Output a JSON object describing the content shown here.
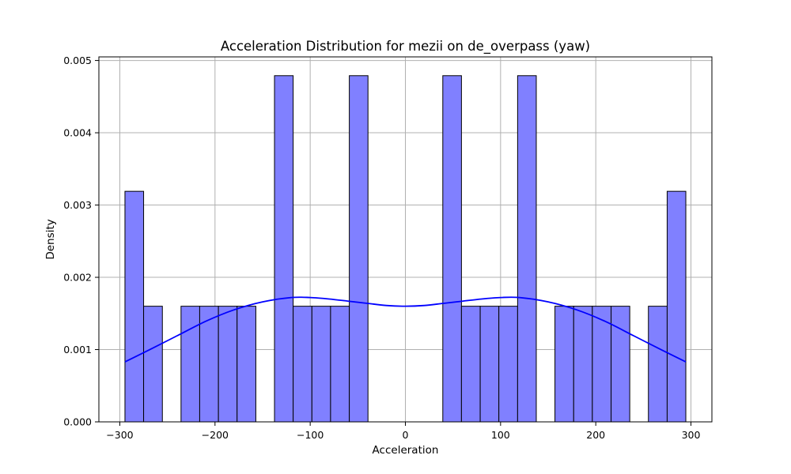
{
  "chart_data": {
    "type": "bar",
    "subtype": "histogram-with-kde",
    "title": "Acceleration Distribution for mezii on de_overpass (yaw)",
    "xlabel": "Acceleration",
    "ylabel": "Density",
    "xlim": [
      -322,
      322
    ],
    "ylim": [
      0,
      0.00505
    ],
    "grid": true,
    "bar_color": "#8080ff",
    "bar_edge_color": "#000000",
    "kde_color": "#0000ff",
    "xticks": [
      -300,
      -200,
      -100,
      0,
      100,
      200,
      300
    ],
    "xtick_labels": [
      "−300",
      "−200",
      "−100",
      "0",
      "100",
      "200",
      "300"
    ],
    "yticks": [
      0,
      0.001,
      0.002,
      0.003,
      0.004,
      0.005
    ],
    "ytick_labels": [
      "0.000",
      "0.001",
      "0.002",
      "0.003",
      "0.004",
      "0.005"
    ],
    "bins": [
      {
        "x0": -294.6,
        "x1": -275.0,
        "density": 0.00319
      },
      {
        "x0": -275.0,
        "x1": -255.3,
        "density": 0.0016
      },
      {
        "x0": -255.3,
        "x1": -235.7,
        "density": 0
      },
      {
        "x0": -235.7,
        "x1": -216.1,
        "density": 0.0016
      },
      {
        "x0": -216.1,
        "x1": -196.4,
        "density": 0.0016
      },
      {
        "x0": -196.4,
        "x1": -176.8,
        "density": 0.0016
      },
      {
        "x0": -176.8,
        "x1": -157.1,
        "density": 0.0016
      },
      {
        "x0": -157.1,
        "x1": -137.5,
        "density": 0
      },
      {
        "x0": -137.5,
        "x1": -117.9,
        "density": 0.00479
      },
      {
        "x0": -117.9,
        "x1": -98.2,
        "density": 0.0016
      },
      {
        "x0": -98.2,
        "x1": -78.6,
        "density": 0.0016
      },
      {
        "x0": -78.6,
        "x1": -58.9,
        "density": 0.0016
      },
      {
        "x0": -58.9,
        "x1": -39.3,
        "density": 0.00479
      },
      {
        "x0": -39.3,
        "x1": -19.6,
        "density": 0
      },
      {
        "x0": -19.6,
        "x1": 0.0,
        "density": 0
      },
      {
        "x0": 0.0,
        "x1": 19.6,
        "density": 0
      },
      {
        "x0": 19.6,
        "x1": 39.3,
        "density": 0
      },
      {
        "x0": 39.3,
        "x1": 58.9,
        "density": 0.00479
      },
      {
        "x0": 58.9,
        "x1": 78.6,
        "density": 0.0016
      },
      {
        "x0": 78.6,
        "x1": 98.2,
        "density": 0.0016
      },
      {
        "x0": 98.2,
        "x1": 117.9,
        "density": 0.0016
      },
      {
        "x0": 117.9,
        "x1": 137.5,
        "density": 0.00479
      },
      {
        "x0": 137.5,
        "x1": 157.1,
        "density": 0
      },
      {
        "x0": 157.1,
        "x1": 176.8,
        "density": 0.0016
      },
      {
        "x0": 176.8,
        "x1": 196.4,
        "density": 0.0016
      },
      {
        "x0": 196.4,
        "x1": 216.1,
        "density": 0.0016
      },
      {
        "x0": 216.1,
        "x1": 235.7,
        "density": 0.0016
      },
      {
        "x0": 235.7,
        "x1": 255.3,
        "density": 0
      },
      {
        "x0": 255.3,
        "x1": 275.0,
        "density": 0.0016
      },
      {
        "x0": 275.0,
        "x1": 294.6,
        "density": 0.00319
      }
    ],
    "kde": {
      "x": [
        -294.6,
        -270,
        -240,
        -210,
        -180,
        -150,
        -120,
        -100,
        -80,
        -60,
        -40,
        -20,
        0,
        20,
        40,
        60,
        80,
        100,
        120,
        150,
        180,
        210,
        240,
        270,
        294.6
      ],
      "y": [
        0.00083,
        0.00099,
        0.00119,
        0.00139,
        0.00155,
        0.00166,
        0.00172,
        0.00172,
        0.0017,
        0.00167,
        0.00164,
        0.00161,
        0.0016,
        0.00161,
        0.00164,
        0.00167,
        0.0017,
        0.00172,
        0.00172,
        0.00166,
        0.00155,
        0.00139,
        0.00119,
        0.00099,
        0.00083
      ]
    }
  }
}
